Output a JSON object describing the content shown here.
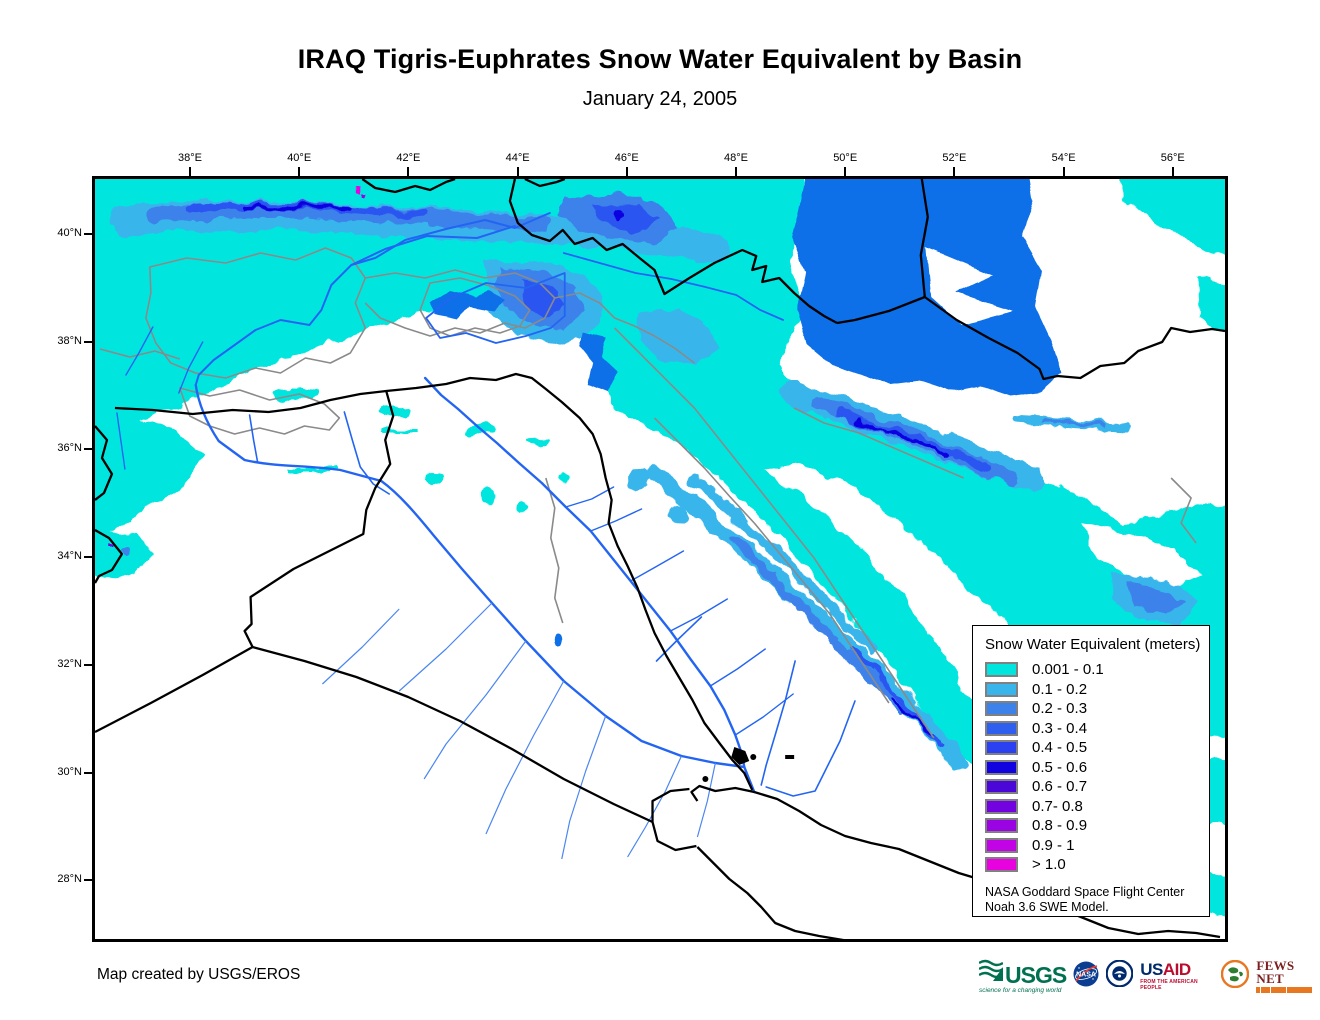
{
  "title": "IRAQ Tigris-Euphrates Snow Water Equivalent by Basin",
  "subtitle": "January 24, 2005",
  "axes": {
    "top_labels": [
      "38°E",
      "40°E",
      "42°E",
      "44°E",
      "46°E",
      "48°E",
      "50°E",
      "52°E",
      "54°E",
      "56°E"
    ],
    "left_labels": [
      "40°N",
      "38°N",
      "36°N",
      "34°N",
      "32°N",
      "30°N",
      "28°N"
    ]
  },
  "legend": {
    "title": "Snow Water Equivalent (meters)",
    "classes": [
      {
        "label": "0.001 - 0.1",
        "color": "#00e6df"
      },
      {
        "label": "0.1 - 0.2",
        "color": "#38b6ec"
      },
      {
        "label": "0.2 - 0.3",
        "color": "#3c82ea"
      },
      {
        "label": "0.3 - 0.4",
        "color": "#2f5fee"
      },
      {
        "label": "0.4 - 0.5",
        "color": "#2b40f0"
      },
      {
        "label": "0.5 - 0.6",
        "color": "#1103e0"
      },
      {
        "label": "0.6 - 0.7",
        "color": "#4b06d8"
      },
      {
        "label": "0.7- 0.8",
        "color": "#7203e0"
      },
      {
        "label": "0.8 - 0.9",
        "color": "#9a03e2"
      },
      {
        "label": "0.9 - 1",
        "color": "#c203e6"
      },
      {
        "label": "> 1.0",
        "color": "#e702df"
      }
    ],
    "source_line1": "NASA Goddard Space Flight Center",
    "source_line2": "Noah 3.6 SWE Model."
  },
  "credit": "Map created by USGS/EROS",
  "logos": {
    "usgs": {
      "name": "USGS",
      "tagline": "science for a changing world"
    },
    "nasa": {
      "name": "NASA"
    },
    "usaid": {
      "name_us": "US",
      "name_aid": "AID",
      "tagline": "FROM THE AMERICAN PEOPLE"
    },
    "fewsnet": {
      "name": "FEWS NET"
    }
  },
  "map_colors": {
    "snow_lightest": "#00e6df",
    "water": "#0a6fe8",
    "river": "#2365f2",
    "river_minor": "#4b86f0",
    "basin_boundary": "#8a8a8a",
    "border": "#000000"
  }
}
